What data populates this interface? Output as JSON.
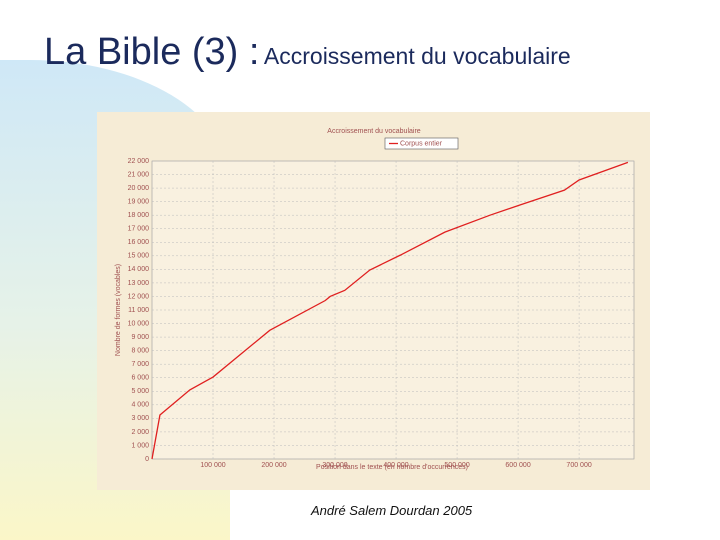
{
  "slide": {
    "title": "La Bible (3) :",
    "subtitle": "Accroissement du vocabulaire",
    "footer": "André Salem Dourdan 2005"
  },
  "chart_data": {
    "type": "line",
    "title": "Accroissement du vocabulaire",
    "x_label": "Position dans le texte (en nombre d'occurrences)",
    "y_label": "Nombre de formes (vocables)",
    "x": [
      0,
      13000,
      62000,
      100000,
      193000,
      284000,
      292000,
      316000,
      357000,
      407000,
      480000,
      554000,
      603000,
      676000,
      700000,
      780000
    ],
    "series": [
      {
        "name": "Corpus entier",
        "color": "#e02020",
        "values": [
          0,
          3250,
          5100,
          6050,
          9500,
          11700,
          12000,
          12450,
          13950,
          15050,
          16750,
          18000,
          18750,
          19850,
          20600,
          21900
        ]
      }
    ],
    "xlim": [
      0,
      790000
    ],
    "ylim": [
      0,
      22000
    ],
    "xticks": [
      {
        "value": 100000,
        "label": "100 000"
      },
      {
        "value": 200000,
        "label": "200 000"
      },
      {
        "value": 300000,
        "label": "300 000"
      },
      {
        "value": 400000,
        "label": "400 000"
      },
      {
        "value": 500000,
        "label": "500 000"
      },
      {
        "value": 600000,
        "label": "600 000"
      },
      {
        "value": 700000,
        "label": "700 000"
      }
    ],
    "yticks": [
      0,
      {
        "value": 1000,
        "label": "1 000"
      },
      {
        "value": 2000,
        "label": "2 000"
      },
      {
        "value": 3000,
        "label": "3 000"
      },
      {
        "value": 4000,
        "label": "4 000"
      },
      {
        "value": 5000,
        "label": "5 000"
      },
      {
        "value": 6000,
        "label": "6 000"
      },
      {
        "value": 7000,
        "label": "7 000"
      },
      {
        "value": 8000,
        "label": "8 000"
      },
      {
        "value": 9000,
        "label": "9 000"
      },
      {
        "value": 10000,
        "label": "10 000"
      },
      {
        "value": 11000,
        "label": "11 000"
      },
      {
        "value": 12000,
        "label": "12 000"
      },
      {
        "value": 13000,
        "label": "13 000"
      },
      {
        "value": 14000,
        "label": "14 000"
      },
      {
        "value": 15000,
        "label": "15 000"
      },
      {
        "value": 16000,
        "label": "16 000"
      },
      {
        "value": 17000,
        "label": "17 000"
      },
      {
        "value": 18000,
        "label": "18 000"
      },
      {
        "value": 19000,
        "label": "19 000"
      },
      {
        "value": 20000,
        "label": "20 000"
      },
      {
        "value": 21000,
        "label": "21 000"
      },
      {
        "value": 22000,
        "label": "22 000"
      }
    ],
    "grid": true
  }
}
